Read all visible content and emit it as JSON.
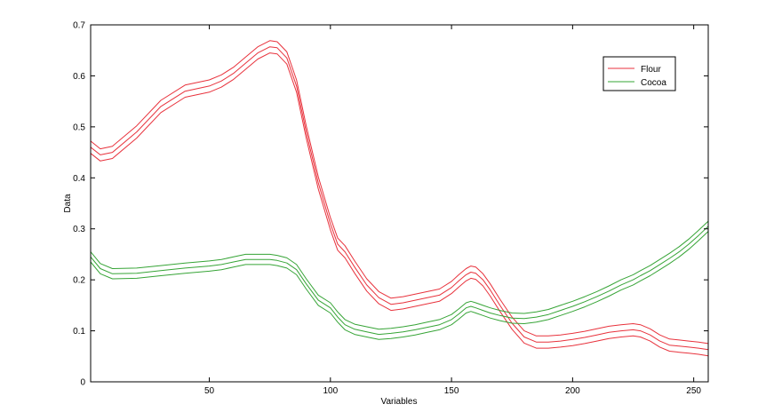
{
  "chart_data": {
    "type": "line",
    "title": "",
    "xlabel": "Variables",
    "ylabel": "Data",
    "xlim": [
      1,
      256
    ],
    "ylim": [
      0,
      0.7
    ],
    "x_ticks": [
      50,
      100,
      150,
      200,
      250
    ],
    "y_ticks": [
      0,
      0.1,
      0.2,
      0.3,
      0.4,
      0.5,
      0.6,
      0.7
    ],
    "x_tick_labels": [
      "50",
      "100",
      "150",
      "200",
      "250"
    ],
    "y_tick_labels": [
      "0",
      "0.1",
      "0.2",
      "0.3",
      "0.4",
      "0.5",
      "0.6",
      "0.7"
    ],
    "grid": false,
    "legend_position": "top-right",
    "legend": [
      "Flour",
      "Cocoa"
    ],
    "colors": {
      "Flour": "#e8323c",
      "Cocoa": "#36a436",
      "axis": "#000000",
      "background": "#ffffff"
    },
    "x": [
      1,
      5,
      10,
      20,
      30,
      40,
      50,
      55,
      60,
      65,
      70,
      75,
      78,
      82,
      86,
      90,
      95,
      100,
      103,
      106,
      110,
      115,
      120,
      125,
      130,
      135,
      140,
      145,
      150,
      153,
      156,
      158,
      160,
      163,
      166,
      170,
      175,
      180,
      185,
      190,
      195,
      200,
      205,
      210,
      215,
      220,
      225,
      228,
      232,
      236,
      240,
      244,
      248,
      252,
      256
    ],
    "series": [
      {
        "name": "Flour",
        "band_offset": 0.012,
        "values": [
          0.46,
          0.445,
          0.45,
          0.49,
          0.54,
          0.57,
          0.58,
          0.59,
          0.605,
          0.625,
          0.645,
          0.657,
          0.655,
          0.635,
          0.58,
          0.49,
          0.39,
          0.31,
          0.27,
          0.255,
          0.225,
          0.19,
          0.165,
          0.152,
          0.155,
          0.16,
          0.165,
          0.17,
          0.185,
          0.198,
          0.21,
          0.215,
          0.213,
          0.2,
          0.18,
          0.15,
          0.115,
          0.088,
          0.078,
          0.078,
          0.08,
          0.083,
          0.087,
          0.092,
          0.097,
          0.1,
          0.102,
          0.1,
          0.092,
          0.08,
          0.072,
          0.07,
          0.068,
          0.066,
          0.063
        ]
      },
      {
        "name": "Cocoa",
        "band_offset": 0.01,
        "values": [
          0.245,
          0.222,
          0.212,
          0.213,
          0.218,
          0.223,
          0.227,
          0.23,
          0.235,
          0.24,
          0.24,
          0.24,
          0.238,
          0.233,
          0.22,
          0.192,
          0.16,
          0.145,
          0.127,
          0.112,
          0.103,
          0.098,
          0.093,
          0.095,
          0.098,
          0.102,
          0.107,
          0.112,
          0.122,
          0.133,
          0.145,
          0.148,
          0.145,
          0.14,
          0.135,
          0.13,
          0.125,
          0.124,
          0.127,
          0.132,
          0.14,
          0.148,
          0.157,
          0.167,
          0.178,
          0.19,
          0.2,
          0.208,
          0.218,
          0.23,
          0.242,
          0.255,
          0.27,
          0.287,
          0.305
        ]
      }
    ]
  }
}
